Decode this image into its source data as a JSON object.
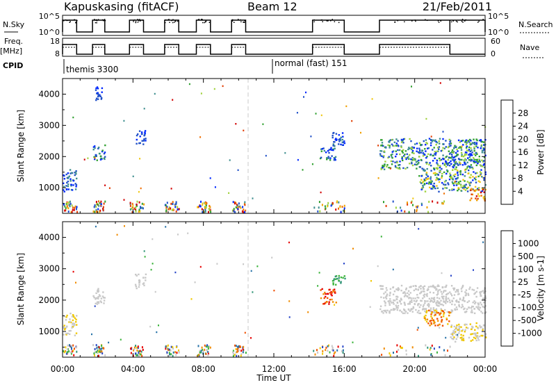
{
  "header": {
    "title": "Kapuskasing (fitACF)",
    "beam": "Beam 12",
    "date": "21/Feb/2011"
  },
  "strips": {
    "nsky_label": "N.Sky",
    "nsky_ticks": [
      "10^5",
      "10^0"
    ],
    "nsearch_label": "N.Search",
    "nsearch_ticks": [
      "10^5",
      "10^0"
    ],
    "freq_label_1": "Freq.",
    "freq_label_2": "[MHz]",
    "freq_ticks": [
      "18",
      "8"
    ],
    "nave_label": "Nave",
    "nave_ticks": [
      "60",
      "0"
    ],
    "cpid_label": "CPID",
    "cpid_modes": [
      {
        "name": "themis 3300",
        "start": 0.0
      },
      {
        "name": "normal (fast) 151",
        "start": 12.0
      }
    ]
  },
  "colors": {
    "power_scale": [
      "#0028ff",
      "#2050c8",
      "#3f8f8f",
      "#30a030",
      "#a0d23c",
      "#f0c814",
      "#f0a000",
      "#f06e00",
      "#e13c00",
      "#d20000"
    ],
    "velocity_scale": [
      "#2846c8",
      "#2873a8",
      "#329678",
      "#3cb43c",
      "#c8c8c8",
      "#c8c8c8",
      "#f0c800",
      "#f08c00",
      "#f05000",
      "#e60000"
    ]
  },
  "chart_data": [
    {
      "type": "heatmap",
      "name": "power",
      "xlabel": "",
      "ylabel": "Slant Range [km]",
      "xlim": [
        0,
        24
      ],
      "ylim": [
        180,
        4500
      ],
      "yticks": [
        1000,
        2000,
        3000,
        4000
      ],
      "colorbar_label": "Power [dB]",
      "colorbar_ticks": [
        "28",
        "24",
        "20",
        "16",
        "12",
        "8",
        "4"
      ],
      "colorbar_range": [
        0,
        30
      ],
      "patches": [
        {
          "t0": 0.0,
          "t1": 0.8,
          "r0": 900,
          "r1": 1600,
          "lvl": [
            0,
            2
          ]
        },
        {
          "t0": 1.7,
          "t1": 2.4,
          "r0": 1900,
          "r1": 2400,
          "lvl": [
            0,
            3
          ]
        },
        {
          "t0": 1.8,
          "t1": 2.2,
          "r0": 3800,
          "r1": 4250,
          "lvl": [
            0,
            1
          ]
        },
        {
          "t0": 4.1,
          "t1": 4.7,
          "r0": 2400,
          "r1": 2850,
          "lvl": [
            0,
            1
          ]
        },
        {
          "t0": 14.6,
          "t1": 15.5,
          "r0": 1900,
          "r1": 2300,
          "lvl": [
            0,
            3
          ]
        },
        {
          "t0": 15.2,
          "t1": 16.0,
          "r0": 2300,
          "r1": 2800,
          "lvl": [
            0,
            2
          ]
        },
        {
          "t0": 18.0,
          "t1": 24.0,
          "r0": 1600,
          "r1": 2600,
          "lvl": [
            0,
            4
          ]
        },
        {
          "t0": 20.2,
          "t1": 24.0,
          "r0": 900,
          "r1": 1600,
          "lvl": [
            0,
            5
          ]
        },
        {
          "t0": 23.1,
          "t1": 24.0,
          "r0": 600,
          "r1": 1000,
          "lvl": [
            5,
            9
          ]
        }
      ]
    },
    {
      "type": "heatmap",
      "name": "velocity",
      "xlabel": "Time UT",
      "ylabel": "Slant Range [km]",
      "xlim": [
        0,
        24
      ],
      "ylim": [
        180,
        4500
      ],
      "xticks": [
        "00:00",
        "04:00",
        "08:00",
        "12:00",
        "16:00",
        "20:00",
        "00:00"
      ],
      "yticks": [
        1000,
        2000,
        3000,
        4000
      ],
      "colorbar_label": "Velocity [m s-1]",
      "colorbar_ticks": [
        "1000",
        "500",
        "100",
        "25",
        "-25",
        "-100",
        "-500",
        "-1000"
      ],
      "colorbar_range": [
        -1000,
        1000
      ],
      "patches": [
        {
          "t0": 0.0,
          "t1": 0.8,
          "r0": 900,
          "r1": 1600,
          "lvl": [
            4,
            6
          ]
        },
        {
          "t0": 1.7,
          "t1": 2.4,
          "r0": 1900,
          "r1": 2400,
          "lvl": [
            4,
            5
          ]
        },
        {
          "t0": 4.1,
          "t1": 4.7,
          "r0": 2400,
          "r1": 2850,
          "lvl": [
            4,
            5
          ]
        },
        {
          "t0": 14.6,
          "t1": 15.5,
          "r0": 1900,
          "r1": 2400,
          "lvl": [
            7,
            9
          ]
        },
        {
          "t0": 15.3,
          "t1": 16.0,
          "r0": 2500,
          "r1": 2800,
          "lvl": [
            2,
            3
          ]
        },
        {
          "t0": 18.0,
          "t1": 24.0,
          "r0": 1600,
          "r1": 2500,
          "lvl": [
            4,
            5
          ]
        },
        {
          "t0": 20.5,
          "t1": 22.0,
          "r0": 1200,
          "r1": 1700,
          "lvl": [
            6,
            8
          ]
        },
        {
          "t0": 22.0,
          "t1": 24.0,
          "r0": 700,
          "r1": 1300,
          "lvl": [
            4,
            6
          ]
        }
      ]
    }
  ]
}
